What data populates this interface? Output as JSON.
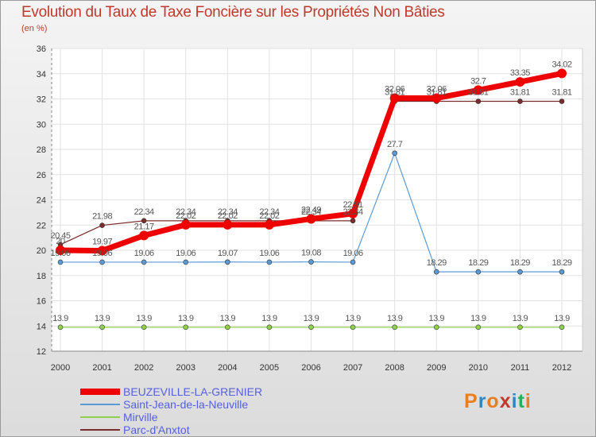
{
  "title": "Evolution du Taux de Taxe Foncière sur les Propriétés Non Bâties",
  "unit": "(en %)",
  "logo": {
    "letters": [
      "P",
      "r",
      "o",
      "x",
      "i",
      "t",
      "i"
    ],
    "colors": [
      "#e67e22",
      "#2e86c1",
      "#e67e22",
      "#c0392b",
      "#2e86c1",
      "#27ae60",
      "#e67e22"
    ]
  },
  "chart_data": {
    "type": "line",
    "title": "Evolution du Taux de Taxe Foncière sur les Propriétés Non Bâties",
    "ylabel": "(en %)",
    "xlabel": "",
    "ylim": [
      12,
      36
    ],
    "yticks": [
      12,
      14,
      16,
      18,
      20,
      22,
      24,
      26,
      28,
      30,
      32,
      34,
      36
    ],
    "grid": true,
    "legend_position": "bottom-left",
    "categories": [
      "2000",
      "2001",
      "2002",
      "2003",
      "2004",
      "2005",
      "2006",
      "2007",
      "2008",
      "2009",
      "2010",
      "2011",
      "2012"
    ],
    "series": [
      {
        "name": "BEUZEVILLE-LA-GRENIER",
        "color": "#ee0000",
        "width": 7,
        "values": [
          20,
          19.97,
          21.17,
          22.02,
          22.02,
          22.02,
          22.49,
          22.91,
          32.06,
          32.06,
          32.7,
          33.35,
          34.02
        ],
        "labels": [
          "20",
          "19.97",
          "21.17",
          "22.02",
          "22.02",
          "22.02",
          "22.49",
          "22.91",
          "32.06",
          "32.06",
          "32.7",
          "33.35",
          "34.02"
        ]
      },
      {
        "name": "Saint-Jean-de-la-Neuville",
        "color": "#5b9bd5",
        "width": 1.2,
        "values": [
          19.06,
          19.06,
          19.06,
          19.06,
          19.07,
          19.06,
          19.08,
          19.06,
          27.7,
          18.29,
          18.29,
          18.29,
          18.29
        ],
        "labels": [
          "19.06",
          "19.06",
          "19.06",
          "19.06",
          "19.07",
          "19.06",
          "19.08",
          "19.06",
          "27.7",
          "18.29",
          "18.29",
          "18.29",
          "18.29"
        ]
      },
      {
        "name": "Mirville",
        "color": "#8fd14f",
        "width": 1.2,
        "values": [
          13.9,
          13.9,
          13.9,
          13.9,
          13.9,
          13.9,
          13.9,
          13.9,
          13.9,
          13.9,
          13.9,
          13.9,
          13.9
        ],
        "labels": [
          "13.9",
          "13.9",
          "13.9",
          "13.9",
          "13.9",
          "13.9",
          "13.9",
          "13.9",
          "13.9",
          "13.9",
          "13.9",
          "13.9",
          "13.9"
        ]
      },
      {
        "name": "Parc-d'Anxtot",
        "color": "#7b2c2c",
        "width": 1.2,
        "values": [
          20.45,
          21.98,
          22.34,
          22.34,
          22.34,
          22.34,
          22.34,
          22.34,
          31.81,
          31.81,
          31.81,
          31.81,
          31.81
        ],
        "labels": [
          "20.45",
          "21.98",
          "22.34",
          "22.34",
          "22.34",
          "22.34",
          "22.34",
          "22.34",
          "31.81",
          "31.81",
          "31.81",
          "31.81",
          "31.81"
        ]
      }
    ]
  }
}
